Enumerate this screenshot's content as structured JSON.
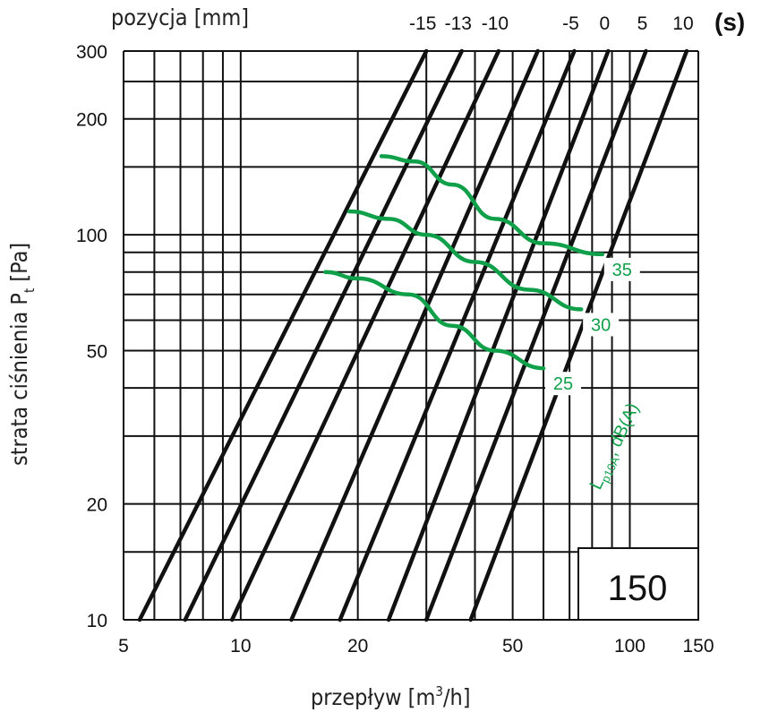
{
  "chart_data": {
    "type": "line",
    "xscale": "log",
    "yscale": "log",
    "xlim": [
      5,
      150
    ],
    "ylim": [
      10,
      300
    ],
    "xlabel_text": "przepływ [m",
    "xlabel_sup": "3",
    "xlabel_tail": "/h]",
    "ylabel_text": "strata ciśnienia P",
    "ylabel_sub": "t",
    "ylabel_tail": " [Pa]",
    "top_label": "pozycja [mm]",
    "top_unit": "(s)",
    "size_label": "150",
    "x_ticks": [
      5,
      10,
      20,
      50,
      100,
      150
    ],
    "y_ticks": [
      10,
      20,
      50,
      100,
      200,
      300
    ],
    "x_gridlines": [
      5,
      6,
      7,
      8,
      9,
      10,
      20,
      30,
      40,
      50,
      60,
      70,
      80,
      90,
      100,
      150
    ],
    "y_gridlines": [
      10,
      15,
      20,
      30,
      40,
      50,
      60,
      70,
      80,
      90,
      100,
      150,
      200,
      250,
      300
    ],
    "damper_positions": [
      {
        "label": "-15",
        "points": [
          [
            5.5,
            10
          ],
          [
            30,
            300
          ]
        ]
      },
      {
        "label": "-13",
        "points": [
          [
            7.2,
            10
          ],
          [
            37,
            300
          ]
        ]
      },
      {
        "label": "-10",
        "points": [
          [
            9.5,
            10
          ],
          [
            46,
            300
          ]
        ]
      },
      {
        "label": "",
        "points": [
          [
            13.5,
            10
          ],
          [
            58,
            300
          ]
        ]
      },
      {
        "label": "-5",
        "points": [
          [
            18,
            10
          ],
          [
            72,
            300
          ]
        ]
      },
      {
        "label": "0",
        "points": [
          [
            24,
            10
          ],
          [
            88,
            300
          ]
        ]
      },
      {
        "label": "5",
        "points": [
          [
            30,
            10
          ],
          [
            110,
            300
          ]
        ]
      },
      {
        "label": "10",
        "points": [
          [
            39,
            10
          ],
          [
            140,
            300
          ]
        ]
      }
    ],
    "noise_annotation_main": "L",
    "noise_annotation_sub": "p10A",
    "noise_annotation_tail": ", dB(A)",
    "noise_curves": [
      {
        "label": "35",
        "points": [
          [
            23,
            160
          ],
          [
            28,
            155
          ],
          [
            35,
            135
          ],
          [
            45,
            110
          ],
          [
            60,
            95
          ],
          [
            85,
            89
          ]
        ]
      },
      {
        "label": "30",
        "points": [
          [
            19,
            115
          ],
          [
            24,
            110
          ],
          [
            30,
            100
          ],
          [
            40,
            85
          ],
          [
            55,
            72
          ],
          [
            75,
            64
          ]
        ]
      },
      {
        "label": "25",
        "points": [
          [
            16.5,
            80
          ],
          [
            20,
            77
          ],
          [
            27,
            70
          ],
          [
            35,
            58
          ],
          [
            45,
            50
          ],
          [
            60,
            45
          ]
        ]
      }
    ],
    "colors": {
      "grid": "#111111",
      "lines": "#111111",
      "noise": "#10a04a"
    }
  }
}
